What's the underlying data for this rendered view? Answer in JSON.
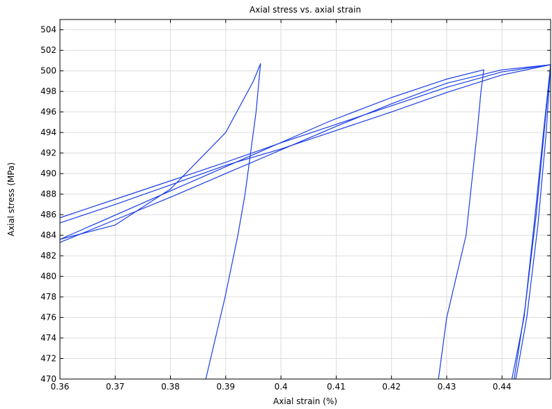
{
  "chart_data": {
    "type": "line",
    "title": "Axial stress vs. axial strain",
    "xlabel": "Axial strain (%)",
    "ylabel": "Axial stress (MPa)",
    "xlim": [
      0.36,
      0.4488
    ],
    "ylim": [
      470,
      505
    ],
    "xticks": [
      0.36,
      0.37,
      0.38,
      0.39,
      0.4,
      0.41,
      0.42,
      0.43,
      0.44
    ],
    "xtick_labels": [
      "0.36",
      "0.37",
      "0.38",
      "0.39",
      "0.4",
      "0.41",
      "0.42",
      "0.43",
      "0.44"
    ],
    "yticks": [
      470,
      472,
      474,
      476,
      478,
      480,
      482,
      484,
      486,
      488,
      490,
      492,
      494,
      496,
      498,
      500,
      502,
      504
    ],
    "ytick_labels": [
      "470",
      "472",
      "474",
      "476",
      "478",
      "480",
      "482",
      "484",
      "486",
      "488",
      "490",
      "492",
      "494",
      "496",
      "498",
      "500",
      "502",
      "504"
    ],
    "grid": true,
    "line_color": "#1a3ee6",
    "series": [
      {
        "x": [
          0.3864,
          0.3899,
          0.3922,
          0.3935,
          0.3945,
          0.3955,
          0.3963,
          0.395,
          0.39,
          0.38,
          0.37,
          0.36,
          0.4088,
          0.42,
          0.43,
          0.4367,
          0.4362,
          0.4355,
          0.4347,
          0.4335,
          0.43,
          0.4285
        ],
        "y": [
          470,
          478,
          484,
          488,
          492,
          496,
          500.7,
          499,
          494,
          488.5,
          485,
          483.6,
          495.1,
          497.4,
          499.2,
          500.1,
          498,
          494,
          490,
          484,
          476,
          470
        ]
      },
      {
        "x": [
          0.36,
          0.37,
          0.38,
          0.39,
          0.4,
          0.41,
          0.42,
          0.43,
          0.44,
          0.4488,
          0.4475,
          0.446,
          0.444,
          0.4418
        ],
        "y": [
          485.7,
          487.5,
          489.3,
          491.1,
          493.0,
          494.8,
          496.6,
          498.4,
          499.9,
          500.6,
          494,
          486,
          476,
          470
        ]
      },
      {
        "x": [
          0.36,
          0.37,
          0.38,
          0.39,
          0.4,
          0.41,
          0.42,
          0.43,
          0.44,
          0.4488,
          0.4478,
          0.4462,
          0.4442,
          0.4422
        ],
        "y": [
          485.2,
          487.0,
          488.9,
          490.8,
          492.4,
          494.2,
          496.0,
          497.9,
          499.6,
          500.6,
          495,
          486,
          477,
          470
        ]
      },
      {
        "x": [
          0.36,
          0.37,
          0.38,
          0.39,
          0.4,
          0.41,
          0.42,
          0.43,
          0.44,
          0.4488,
          0.448,
          0.4465,
          0.4445,
          0.4425
        ],
        "y": [
          483.3,
          485.5,
          487.7,
          490.0,
          492.3,
          494.6,
          496.8,
          498.8,
          500.1,
          500.6,
          494,
          485,
          476,
          470
        ]
      }
    ]
  }
}
